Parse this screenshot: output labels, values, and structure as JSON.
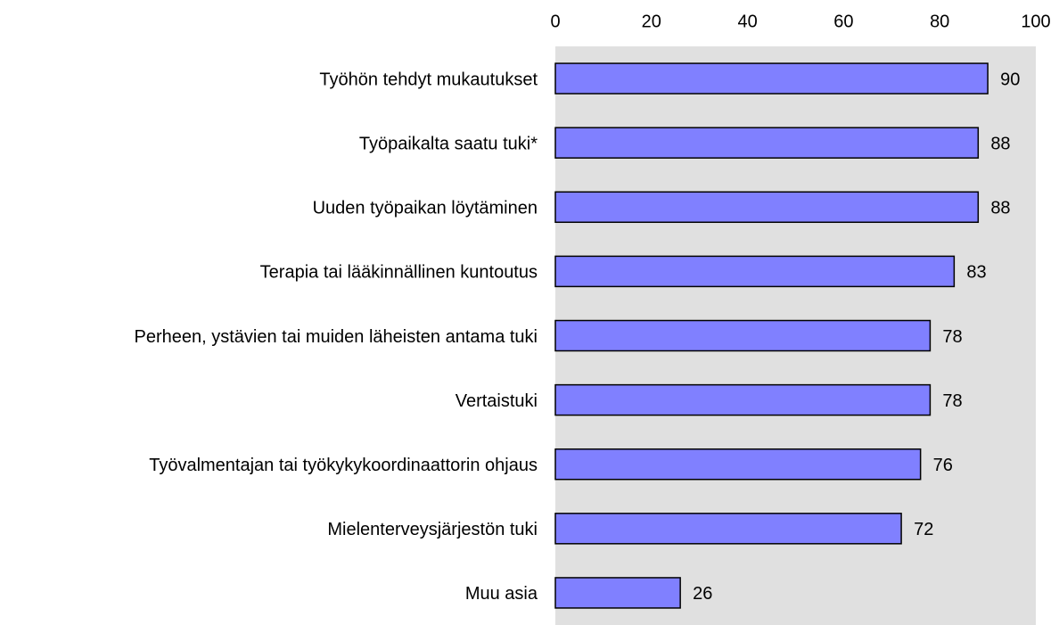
{
  "chart_data": {
    "type": "bar",
    "orientation": "horizontal",
    "categories": [
      "Työhön tehdyt mukautukset",
      "Työpaikalta saatu tuki*",
      "Uuden työpaikan löytäminen",
      "Terapia tai lääkinnällinen kuntoutus",
      "Perheen, ystävien tai muiden läheisten antama tuki",
      "Vertaistuki",
      "Työvalmentajan tai työkykykoordinaattorin ohjaus",
      "Mielenterveysjärjestön tuki",
      "Muu asia"
    ],
    "values": [
      90,
      88,
      88,
      83,
      78,
      78,
      76,
      72,
      26
    ],
    "color": "#8080ff",
    "xlim": [
      0,
      100
    ],
    "xticks": [
      0,
      20,
      40,
      60,
      80,
      100
    ],
    "grid": false
  }
}
